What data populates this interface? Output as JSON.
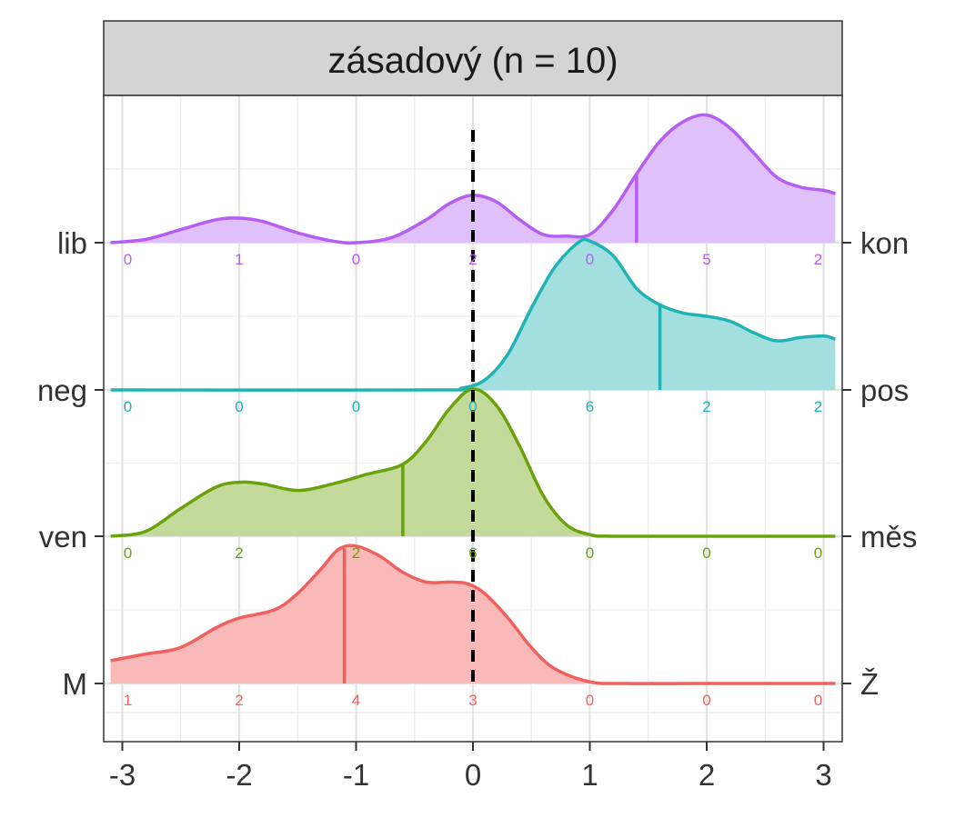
{
  "chart_data": {
    "type": "ridgeline",
    "title": "zásadový (n = 10)",
    "xlim": [
      -3.1,
      3.1
    ],
    "x_ticks": [
      "-3",
      "-2",
      "-1",
      "0",
      "1",
      "2",
      "3"
    ],
    "reference_line_x": 0,
    "grid": true,
    "ridges": [
      {
        "left_label": "M",
        "right_label": "Ž",
        "color": "#F0615E",
        "fill": "#F8B9B8",
        "median": -1.1,
        "counts": [
          "1",
          "2",
          "4",
          "3",
          "0",
          "0",
          "0"
        ],
        "density": [
          [
            -3.1,
            0.14
          ],
          [
            -2.8,
            0.18
          ],
          [
            -2.5,
            0.22
          ],
          [
            -2.2,
            0.34
          ],
          [
            -2.0,
            0.4
          ],
          [
            -1.7,
            0.45
          ],
          [
            -1.5,
            0.55
          ],
          [
            -1.3,
            0.7
          ],
          [
            -1.15,
            0.82
          ],
          [
            -1.0,
            0.84
          ],
          [
            -0.8,
            0.78
          ],
          [
            -0.6,
            0.68
          ],
          [
            -0.4,
            0.62
          ],
          [
            -0.2,
            0.62
          ],
          [
            -0.05,
            0.61
          ],
          [
            0.1,
            0.55
          ],
          [
            0.3,
            0.4
          ],
          [
            0.5,
            0.22
          ],
          [
            0.7,
            0.09
          ],
          [
            1.0,
            0.01
          ],
          [
            1.3,
            0.0
          ],
          [
            2.0,
            0.0
          ],
          [
            3.1,
            0.0
          ]
        ]
      },
      {
        "left_label": "ven",
        "right_label": "měs",
        "color": "#6AA20B",
        "fill": "#C4DA9A",
        "median": -0.6,
        "counts": [
          "0",
          "2",
          "2",
          "6",
          "0",
          "0",
          "0"
        ],
        "density": [
          [
            -3.1,
            0.0
          ],
          [
            -2.8,
            0.03
          ],
          [
            -2.5,
            0.17
          ],
          [
            -2.2,
            0.3
          ],
          [
            -2.0,
            0.33
          ],
          [
            -1.8,
            0.32
          ],
          [
            -1.5,
            0.28
          ],
          [
            -1.2,
            0.32
          ],
          [
            -0.9,
            0.38
          ],
          [
            -0.6,
            0.44
          ],
          [
            -0.4,
            0.58
          ],
          [
            -0.2,
            0.78
          ],
          [
            0.0,
            0.9
          ],
          [
            0.2,
            0.8
          ],
          [
            0.4,
            0.55
          ],
          [
            0.6,
            0.25
          ],
          [
            0.8,
            0.07
          ],
          [
            1.0,
            0.01
          ],
          [
            1.2,
            0.0
          ],
          [
            2.0,
            0.0
          ],
          [
            3.1,
            0.0
          ]
        ]
      },
      {
        "left_label": "neg",
        "right_label": "pos",
        "color": "#1FB3B6",
        "fill": "#A3DFDF",
        "median": 1.6,
        "counts": [
          "0",
          "0",
          "0",
          "0",
          "6",
          "2",
          "2"
        ],
        "density": [
          [
            -3.1,
            0.0
          ],
          [
            -0.3,
            0.0
          ],
          [
            -0.1,
            0.01
          ],
          [
            0.1,
            0.06
          ],
          [
            0.3,
            0.22
          ],
          [
            0.5,
            0.5
          ],
          [
            0.7,
            0.75
          ],
          [
            0.9,
            0.9
          ],
          [
            1.0,
            0.91
          ],
          [
            1.2,
            0.82
          ],
          [
            1.4,
            0.62
          ],
          [
            1.6,
            0.52
          ],
          [
            1.8,
            0.47
          ],
          [
            2.0,
            0.45
          ],
          [
            2.2,
            0.42
          ],
          [
            2.4,
            0.35
          ],
          [
            2.6,
            0.3
          ],
          [
            2.8,
            0.32
          ],
          [
            3.0,
            0.33
          ],
          [
            3.1,
            0.31
          ]
        ]
      },
      {
        "left_label": "lib",
        "right_label": "kon",
        "color": "#B55EF5",
        "fill": "#DFC0FA",
        "median": 1.4,
        "counts": [
          "0",
          "1",
          "0",
          "2",
          "0",
          "5",
          "2"
        ],
        "density": [
          [
            -3.1,
            0.0
          ],
          [
            -2.8,
            0.02
          ],
          [
            -2.5,
            0.08
          ],
          [
            -2.2,
            0.14
          ],
          [
            -2.0,
            0.15
          ],
          [
            -1.8,
            0.13
          ],
          [
            -1.5,
            0.06
          ],
          [
            -1.2,
            0.01
          ],
          [
            -1.0,
            0.0
          ],
          [
            -0.7,
            0.03
          ],
          [
            -0.4,
            0.14
          ],
          [
            -0.2,
            0.24
          ],
          [
            0.0,
            0.29
          ],
          [
            0.2,
            0.25
          ],
          [
            0.4,
            0.14
          ],
          [
            0.6,
            0.05
          ],
          [
            0.8,
            0.04
          ],
          [
            1.0,
            0.05
          ],
          [
            1.2,
            0.2
          ],
          [
            1.4,
            0.42
          ],
          [
            1.6,
            0.62
          ],
          [
            1.8,
            0.74
          ],
          [
            2.0,
            0.78
          ],
          [
            2.2,
            0.7
          ],
          [
            2.4,
            0.55
          ],
          [
            2.6,
            0.4
          ],
          [
            2.8,
            0.34
          ],
          [
            3.0,
            0.32
          ],
          [
            3.1,
            0.3
          ]
        ]
      }
    ]
  }
}
